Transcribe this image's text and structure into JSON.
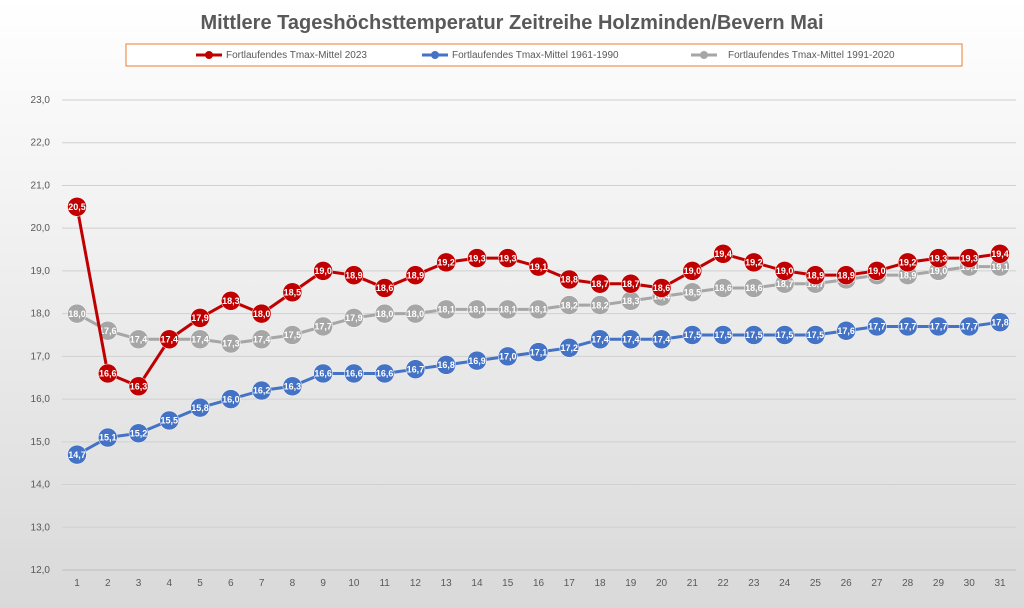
{
  "chart_data": {
    "type": "line",
    "title": "Mittlere Tageshöchsttemperatur Zeitreihe Holzminden/Bevern Mai",
    "xlabel": "",
    "ylabel": "",
    "categories": [
      "1",
      "2",
      "3",
      "4",
      "5",
      "6",
      "7",
      "8",
      "9",
      "10",
      "11",
      "12",
      "13",
      "14",
      "15",
      "16",
      "17",
      "18",
      "19",
      "20",
      "21",
      "22",
      "23",
      "24",
      "25",
      "26",
      "27",
      "28",
      "29",
      "30",
      "31"
    ],
    "ylim": [
      12.0,
      23.0
    ],
    "yticks": [
      "12,0",
      "13,0",
      "14,0",
      "15,0",
      "16,0",
      "17,0",
      "18,0",
      "19,0",
      "20,0",
      "21,0",
      "22,0",
      "23,0"
    ],
    "grid": true,
    "legend_position": "top",
    "series": [
      {
        "name": "Fortlaufendes Tmax-Mittel 2023",
        "color": "#c00000",
        "values": [
          20.5,
          16.6,
          16.3,
          17.4,
          17.9,
          18.3,
          18.0,
          18.5,
          19.0,
          18.9,
          18.6,
          18.9,
          19.2,
          19.3,
          19.3,
          19.1,
          18.8,
          18.7,
          18.7,
          18.6,
          19.0,
          19.4,
          19.2,
          19.0,
          18.9,
          18.9,
          19.0,
          19.2,
          19.3,
          19.3,
          19.4
        ]
      },
      {
        "name": "Fortlaufendes Tmax-Mittel 1961-1990",
        "color": "#4472c4",
        "values": [
          14.7,
          15.1,
          15.2,
          15.5,
          15.8,
          16.0,
          16.2,
          16.3,
          16.6,
          16.6,
          16.6,
          16.7,
          16.8,
          16.9,
          17.0,
          17.1,
          17.2,
          17.4,
          17.4,
          17.4,
          17.5,
          17.5,
          17.5,
          17.5,
          17.5,
          17.6,
          17.7,
          17.7,
          17.7,
          17.7,
          17.8
        ]
      },
      {
        "name": "Fortlaufendes Tmax-Mittel 1991-2020",
        "color": "#a6a6a6",
        "values": [
          18.0,
          17.6,
          17.4,
          17.4,
          17.4,
          17.3,
          17.4,
          17.5,
          17.7,
          17.9,
          18.0,
          18.0,
          18.1,
          18.1,
          18.1,
          18.1,
          18.2,
          18.2,
          18.3,
          18.4,
          18.5,
          18.6,
          18.6,
          18.7,
          18.7,
          18.8,
          18.9,
          18.9,
          19.0,
          19.1,
          19.1
        ]
      }
    ],
    "draw_order": [
      2,
      1,
      0
    ]
  }
}
